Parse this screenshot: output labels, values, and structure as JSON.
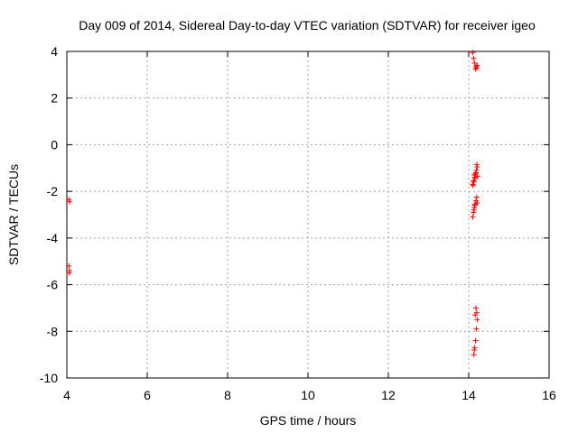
{
  "chart_data": {
    "type": "scatter",
    "title": "Day 009 of 2014, Sidereal Day-to-day VTEC variation (SDTVAR) for receiver igeo",
    "xlabel": "GPS time / hours",
    "ylabel": "SDTVAR / TECUs",
    "xlim": [
      4,
      16
    ],
    "ylim": [
      -10,
      4
    ],
    "xticks": [
      4,
      6,
      8,
      10,
      12,
      14,
      16
    ],
    "yticks": [
      -10,
      -8,
      -6,
      -4,
      -2,
      0,
      2,
      4
    ],
    "grid": true,
    "marker": "+",
    "colors": {
      "points": "#ff0000",
      "grid": "#a0a0a0",
      "axes": "#000000"
    },
    "series": [
      {
        "name": "SDTVAR",
        "x": [
          4.05,
          4.07,
          4.05,
          4.07,
          4.06,
          14.1,
          14.12,
          14.15,
          14.18,
          14.2,
          14.17,
          14.21,
          14.1,
          14.12,
          14.15,
          14.17,
          14.19,
          14.21,
          14.14,
          14.16,
          14.2,
          14.13,
          14.11,
          14.18,
          14.22,
          14.1,
          14.12,
          14.14,
          14.16,
          14.18,
          14.2,
          14.15,
          14.13,
          14.21,
          14.13,
          14.15,
          14.17,
          14.19,
          14.21,
          14.2,
          14.18,
          14.16,
          14.14
        ],
        "y": [
          -2.35,
          -2.45,
          -5.2,
          -5.4,
          -5.5,
          3.95,
          3.7,
          3.5,
          3.35,
          3.3,
          3.25,
          3.4,
          -1.7,
          -1.55,
          -1.4,
          -1.25,
          -1.1,
          -0.95,
          -1.3,
          -1.45,
          -0.85,
          -1.6,
          -1.75,
          -1.2,
          -1.35,
          -3.1,
          -2.9,
          -2.7,
          -2.55,
          -2.4,
          -2.25,
          -2.6,
          -2.8,
          -2.5,
          -9.0,
          -8.7,
          -8.4,
          -7.9,
          -7.5,
          -7.2,
          -7.0,
          -7.3,
          -8.8
        ]
      }
    ]
  }
}
